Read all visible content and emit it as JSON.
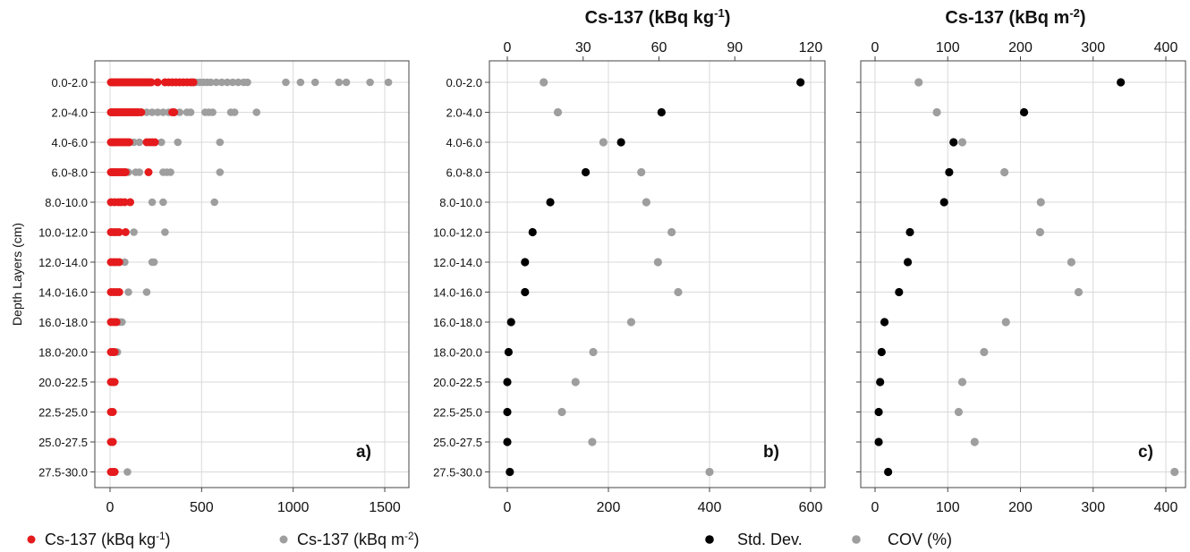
{
  "depth_layers": [
    "0.0-2.0",
    "2.0-4.0",
    "4.0-6.0",
    "6.0-8.0",
    "8.0-10.0",
    "10.0-12.0",
    "12.0-14.0",
    "14.0-16.0",
    "16.0-18.0",
    "18.0-20.0",
    "20.0-22.5",
    "22.5-25.0",
    "25.0-27.5",
    "27.5-30.0"
  ],
  "colors": {
    "red": "#e41a1c",
    "gray": "#9e9e9e",
    "black": "#000000"
  },
  "legend_a": {
    "red_label": "Cs-137 (kBq kg",
    "red_sup": "-1",
    "red_suffix": ")",
    "gray_label": "Cs-137 (kBq m",
    "gray_sup": "-2",
    "gray_suffix": ")"
  },
  "legend_bc": {
    "black_label": "Std. Dev.",
    "gray_label": "COV (%)"
  },
  "chart_data": [
    {
      "panel": "a)",
      "type": "scatter",
      "ylabel": "Depth Layers (cm)",
      "xlim": [
        0,
        1600
      ],
      "xticks": [
        0,
        500,
        1000,
        1500
      ],
      "series": [
        {
          "name": "Cs-137 (kBq kg-1)",
          "color": "#e41a1c",
          "points": [
            [
              0,
              [
                5,
                15,
                25,
                35,
                45,
                55,
                65,
                75,
                85,
                95,
                105,
                115,
                125,
                135,
                145,
                155,
                165,
                175,
                185,
                195,
                205,
                215,
                225,
                260,
                300,
                320,
                340,
                360,
                380,
                400,
                420,
                440,
                455
              ]
            ],
            [
              1,
              [
                5,
                15,
                25,
                35,
                45,
                55,
                65,
                75,
                85,
                95,
                105,
                115,
                125,
                135,
                145,
                155,
                170,
                340,
                350
              ]
            ],
            [
              2,
              [
                5,
                15,
                25,
                35,
                45,
                55,
                65,
                75,
                85,
                95,
                105,
                200,
                215,
                230,
                245
              ]
            ],
            [
              3,
              [
                5,
                15,
                25,
                35,
                45,
                55,
                65,
                75,
                85,
                210
              ]
            ],
            [
              4,
              [
                5,
                25,
                45,
                60,
                80,
                110
              ]
            ],
            [
              5,
              [
                5,
                20,
                35,
                50,
                85
              ]
            ],
            [
              6,
              [
                5,
                20,
                35,
                50
              ]
            ],
            [
              7,
              [
                5,
                20,
                35,
                50
              ]
            ],
            [
              8,
              [
                5,
                20,
                35
              ]
            ],
            [
              9,
              [
                5,
                15,
                25
              ]
            ],
            [
              10,
              [
                5,
                15,
                25
              ]
            ],
            [
              11,
              [
                5,
                15
              ]
            ],
            [
              12,
              [
                5,
                15
              ]
            ],
            [
              13,
              [
                5,
                15,
                25
              ]
            ]
          ]
        },
        {
          "name": "Cs-137 (kBq m-2)",
          "color": "#9e9e9e",
          "points": [
            [
              0,
              [
                470,
                490,
                510,
                530,
                550,
                580,
                610,
                640,
                670,
                700,
                730,
                750,
                960,
                1040,
                1120,
                1250,
                1290,
                1420,
                1520
              ]
            ],
            [
              1,
              [
                200,
                230,
                260,
                290,
                320,
                350,
                380,
                420,
                440,
                520,
                540,
                560,
                660,
                680,
                800
              ]
            ],
            [
              2,
              [
                100,
                130,
                160,
                280,
                370,
                600
              ]
            ],
            [
              3,
              [
                100,
                140,
                160,
                290,
                310,
                330,
                600
              ]
            ],
            [
              4,
              [
                230,
                290,
                570
              ]
            ],
            [
              5,
              [
                130,
                300
              ]
            ],
            [
              6,
              [
                80,
                230,
                240
              ]
            ],
            [
              7,
              [
                100,
                200
              ]
            ],
            [
              8,
              [
                55,
                65
              ]
            ],
            [
              9,
              [
                40
              ]
            ],
            [
              10,
              []
            ],
            [
              11,
              []
            ],
            [
              12,
              []
            ],
            [
              13,
              [
                95
              ]
            ]
          ]
        }
      ]
    },
    {
      "panel": "b)",
      "type": "scatter",
      "title": "Cs-137 (kBq kg",
      "title_sup": "-1",
      "title_suffix": ")",
      "xlim_bottom": [
        0,
        620
      ],
      "xticks_bottom": [
        0,
        200,
        400,
        600
      ],
      "xticks_top": [
        0,
        30,
        60,
        90,
        120
      ],
      "top_scale_factor": 5,
      "series": [
        {
          "name": "Std. Dev.",
          "axis": "top",
          "color": "#000000",
          "values": [
            116,
            61,
            45,
            31,
            17,
            10,
            7,
            7,
            1.5,
            0.5,
            0,
            0,
            0,
            1
          ]
        },
        {
          "name": "COV (%)",
          "axis": "bottom",
          "color": "#9e9e9e",
          "values": [
            72,
            100,
            190,
            265,
            275,
            325,
            298,
            338,
            245,
            170,
            135,
            108,
            168,
            400
          ]
        }
      ]
    },
    {
      "panel": "c)",
      "type": "scatter",
      "title": "Cs-137 (kBq m",
      "title_sup": "-2",
      "title_suffix": ")",
      "xlim": [
        -10,
        430
      ],
      "xticks": [
        0,
        100,
        200,
        300,
        400
      ],
      "series": [
        {
          "name": "Std. Dev.",
          "color": "#000000",
          "values": [
            338,
            205,
            108,
            102,
            95,
            48,
            45,
            33,
            13,
            9,
            7,
            5,
            5,
            18
          ]
        },
        {
          "name": "COV (%)",
          "color": "#9e9e9e",
          "values": [
            60,
            85,
            120,
            178,
            228,
            227,
            270,
            280,
            180,
            150,
            120,
            115,
            137,
            412
          ]
        }
      ]
    }
  ]
}
